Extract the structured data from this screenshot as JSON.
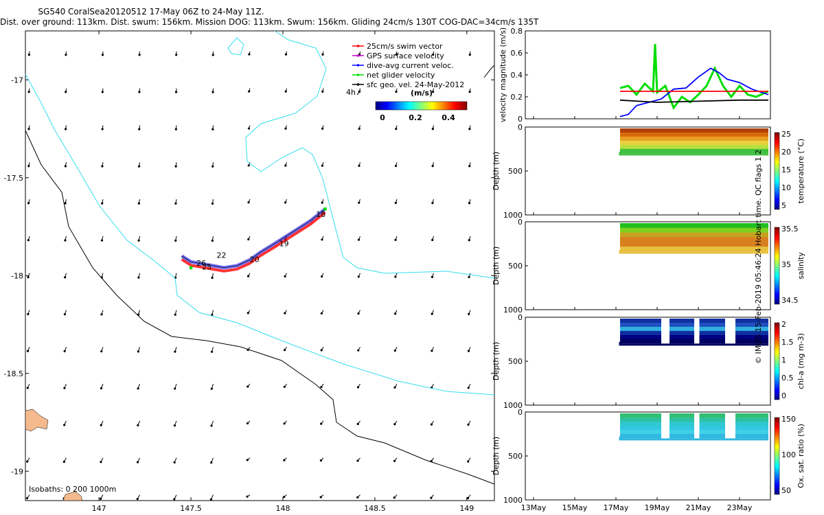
{
  "header": {
    "line1": "SG540 CoralSea20120512 17-May 06Z to 24-May 11Z.",
    "line2": "Dist. over ground: 113km. Dist. swum: 156km. Mission DOG: 113km. Swum: 156km. Gliding 24cm/s 130T COG-DAC=34cm/s 135T"
  },
  "credit": "© IMOS 15-Feb-2019 05:46:24 Hobart time. QC flags 1  2",
  "map": {
    "lon_ticks": [
      "147",
      "147.5",
      "148",
      "148.5",
      "149"
    ],
    "lat_ticks": [
      "-17",
      "-17.5",
      "-18",
      "-18.5",
      "-19"
    ],
    "legend": [
      {
        "label": "25cm/s swim vector",
        "color": "#ff0000"
      },
      {
        "label": "GPS surface velocity",
        "color": "#cc00cc"
      },
      {
        "label": "dive-avg current veloc.",
        "color": "#0000ff"
      },
      {
        "label": "net glider velocity",
        "color": "#00dd00"
      },
      {
        "label": "sfc geo. vel. 24-May-2012",
        "color": "#000000"
      }
    ],
    "time_marker": "4h",
    "colorbar_units": "(m/s)",
    "colorbar_ticks": [
      "0",
      "0.2",
      "0.4"
    ],
    "day_labels": [
      {
        "label": "18",
        "lon": 148.18,
        "lat": -17.7
      },
      {
        "label": "19",
        "lon": 147.98,
        "lat": -17.85
      },
      {
        "label": "20",
        "lon": 147.82,
        "lat": -17.93
      },
      {
        "label": "22",
        "lon": 147.64,
        "lat": -17.91
      },
      {
        "label": "26",
        "lon": 147.53,
        "lat": -17.95
      },
      {
        "label": "25",
        "lon": 147.56,
        "lat": -17.97
      }
    ],
    "isobaths_label": "Isobaths:  0   200  1000m",
    "colors": {
      "isobath_200": "#33ddee",
      "isobath_1000": "#000000",
      "land": "#f4b98c"
    }
  },
  "panels": {
    "time_ticks": [
      "13May",
      "15May",
      "17May",
      "19May",
      "21May",
      "23May"
    ],
    "velocity": {
      "ylabel": "velocity magnitude (m/s)",
      "ytick_labels": [
        "0",
        "0.2",
        "0.4",
        "0.6",
        "0.8"
      ]
    },
    "sections": [
      {
        "ylabel": "Depth (m)",
        "cbar_label": "temperature (°C)",
        "cbar_ticks": [
          "5",
          "10",
          "15",
          "20",
          "25"
        ],
        "depth_ticks": [
          "0",
          "500",
          "1000"
        ]
      },
      {
        "ylabel": "Depth (m)",
        "cbar_label": "salinity",
        "cbar_ticks": [
          "34.5",
          "35",
          "35.5"
        ],
        "depth_ticks": [
          "0",
          "500",
          "1000"
        ]
      },
      {
        "ylabel": "Depth (m)",
        "cbar_label": "chl-a (mg m-3)",
        "cbar_ticks": [
          "0",
          "0.5",
          "1",
          "1.5",
          "2"
        ],
        "depth_ticks": [
          "0",
          "500",
          "1000"
        ]
      },
      {
        "ylabel": "Depth (m)",
        "cbar_label": "Ox. sat. ratio (%)",
        "cbar_ticks": [
          "50",
          "100",
          "150"
        ],
        "depth_ticks": [
          "0",
          "500",
          "1000"
        ]
      }
    ]
  },
  "chart_data": [
    {
      "type": "scatter",
      "title": "",
      "x_range_lon": [
        146.6,
        149.15
      ],
      "y_range_lat": [
        -19.15,
        -16.75
      ],
      "series": [
        {
          "name": "net glider velocity",
          "x": [
            148.23,
            148.15,
            148.05,
            147.95,
            147.88,
            147.82,
            147.75,
            147.68,
            147.62,
            147.56,
            147.5,
            147.45
          ],
          "y": [
            -17.66,
            -17.72,
            -17.78,
            -17.84,
            -17.88,
            -17.92,
            -17.95,
            -17.96,
            -17.95,
            -17.94,
            -17.93,
            -17.9
          ]
        }
      ]
    },
    {
      "type": "line",
      "ylabel": "velocity magnitude (m/s)",
      "ylim": [
        0,
        0.8
      ],
      "x_units": "day of May 2012",
      "series": [
        {
          "name": "net glider velocity",
          "color": "#00dd00",
          "x": [
            17.2,
            17.6,
            18,
            18.4,
            18.8,
            18.9,
            19,
            19.4,
            19.8,
            20.2,
            20.6,
            21,
            21.4,
            21.8,
            22.2,
            22.6,
            23,
            23.4,
            23.8,
            24.4
          ],
          "y": [
            0.28,
            0.3,
            0.22,
            0.32,
            0.25,
            0.68,
            0.24,
            0.3,
            0.1,
            0.2,
            0.15,
            0.22,
            0.3,
            0.46,
            0.3,
            0.2,
            0.3,
            0.22,
            0.2,
            0.25
          ]
        },
        {
          "name": "dive-avg current veloc.",
          "color": "#0000ff",
          "x": [
            17.2,
            17.6,
            18,
            18.6,
            19.2,
            19.8,
            20.4,
            21,
            21.6,
            22,
            22.4,
            23,
            23.6,
            24.4
          ],
          "y": [
            0.02,
            0.04,
            0.12,
            0.15,
            0.18,
            0.27,
            0.28,
            0.38,
            0.46,
            0.42,
            0.36,
            0.33,
            0.27,
            0.22
          ]
        },
        {
          "name": "25cm/s swim vector",
          "color": "#ff0000",
          "x": [
            17.2,
            19,
            21,
            23,
            24.4
          ],
          "y": [
            0.25,
            0.25,
            0.25,
            0.25,
            0.25
          ]
        },
        {
          "name": "sfc geo. vel. 24-May-2012",
          "color": "#000000",
          "x": [
            17.2,
            19,
            21,
            23,
            24.4
          ],
          "y": [
            0.17,
            0.15,
            0.16,
            0.17,
            0.17
          ]
        }
      ]
    },
    {
      "type": "heatmap",
      "variable": "temperature",
      "depth_range_m": [
        0,
        280
      ],
      "value_range": [
        5,
        28
      ],
      "xlim_days": [
        12.6,
        24.5
      ]
    },
    {
      "type": "heatmap",
      "variable": "salinity",
      "depth_range_m": [
        0,
        320
      ],
      "value_range": [
        34.3,
        35.8
      ],
      "xlim_days": [
        12.6,
        24.5
      ]
    },
    {
      "type": "heatmap",
      "variable": "chl-a",
      "depth_range_m": [
        0,
        280
      ],
      "value_range": [
        0,
        2
      ],
      "xlim_days": [
        12.6,
        24.5
      ]
    },
    {
      "type": "heatmap",
      "variable": "oxygen saturation",
      "depth_range_m": [
        0,
        280
      ],
      "value_range": [
        20,
        170
      ],
      "xlim_days": [
        12.6,
        24.5
      ]
    }
  ]
}
